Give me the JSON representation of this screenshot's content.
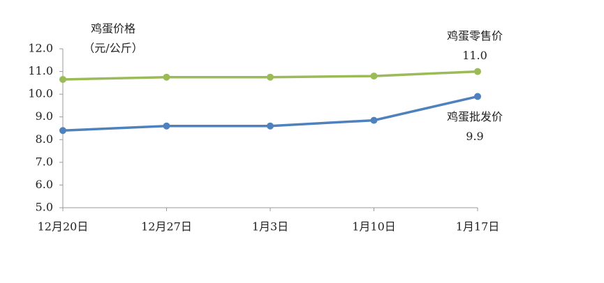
{
  "chart_data": {
    "type": "line",
    "y_title": [
      "鸡蛋价格",
      "（元/公斤）"
    ],
    "categories": [
      "12月20日",
      "12月27日",
      "1月3日",
      "1月10日",
      "1月17日"
    ],
    "series": [
      {
        "name": "鸡蛋零售价",
        "color": "#9bbb59",
        "values": [
          10.65,
          10.75,
          10.75,
          10.8,
          11.0
        ],
        "value_labels": [
          null,
          null,
          null,
          null,
          "11.0"
        ]
      },
      {
        "name": "鸡蛋批发价",
        "color": "#4f81bd",
        "values": [
          8.4,
          8.6,
          8.6,
          8.85,
          9.9
        ],
        "value_labels": [
          null,
          null,
          null,
          null,
          "9.9"
        ]
      }
    ],
    "ylim": [
      5,
      12
    ],
    "yticks": [
      {
        "value": 5,
        "label": "5.0"
      },
      {
        "value": 6,
        "label": "6.0"
      },
      {
        "value": 7,
        "label": "7.0"
      },
      {
        "value": 8,
        "label": "8.0"
      },
      {
        "value": 9,
        "label": "9.0"
      },
      {
        "value": 10,
        "label": "10.0"
      },
      {
        "value": 11,
        "label": "11.0"
      },
      {
        "value": 12,
        "label": "12.0"
      }
    ]
  }
}
